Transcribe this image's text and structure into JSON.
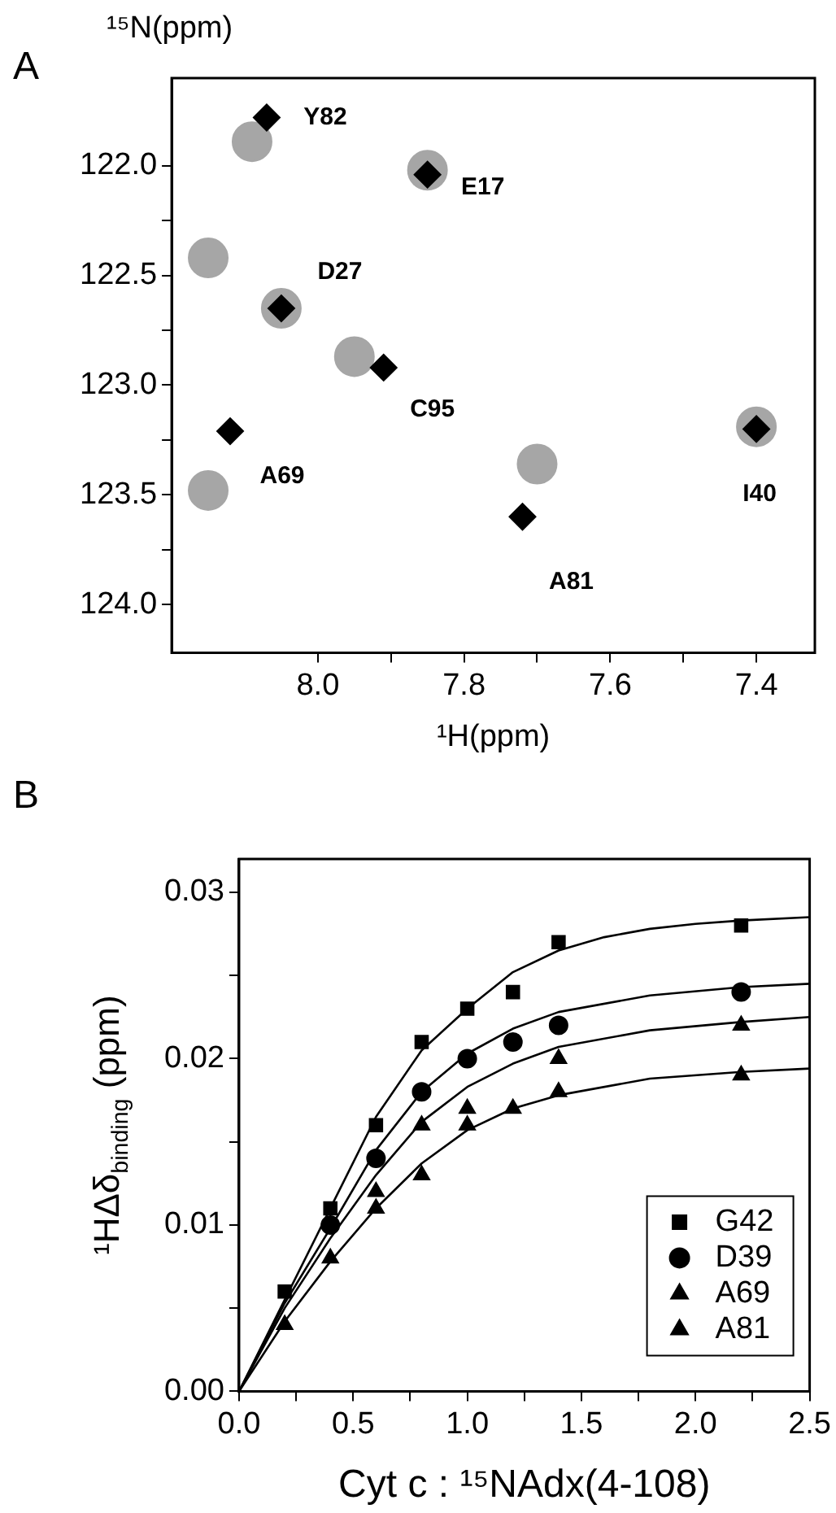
{
  "chart_data": [
    {
      "type": "scatter",
      "title": "A",
      "xlabel": "¹H(ppm)",
      "ylabel": "¹⁵N(ppm)",
      "xlim": [
        8.2,
        7.32
      ],
      "ylim": [
        124.22,
        121.6
      ],
      "xticks": [
        {
          "value": 8.0,
          "label": "8.0"
        },
        {
          "value": 7.9,
          "label": null
        },
        {
          "value": 7.8,
          "label": "7.8"
        },
        {
          "value": 7.7,
          "label": null
        },
        {
          "value": 7.6,
          "label": "7.6"
        },
        {
          "value": 7.5,
          "label": null
        },
        {
          "value": 7.4,
          "label": "7.4"
        }
      ],
      "yticks": [
        {
          "value": 122.0,
          "label": "122.0"
        },
        {
          "value": 122.25,
          "label": null
        },
        {
          "value": 122.5,
          "label": "122.5"
        },
        {
          "value": 122.75,
          "label": null
        },
        {
          "value": 123.0,
          "label": "123.0"
        },
        {
          "value": 123.25,
          "label": null
        },
        {
          "value": 123.5,
          "label": "123.5"
        },
        {
          "value": 123.75,
          "label": null
        },
        {
          "value": 124.0,
          "label": "124.0"
        }
      ],
      "series": [
        {
          "color": "#000000",
          "marker": "diamond",
          "x": [
            8.07,
            7.85,
            8.05,
            7.91,
            8.12,
            7.72,
            7.4
          ],
          "values": [
            121.78,
            122.04,
            122.65,
            122.92,
            123.21,
            123.6,
            123.2
          ]
        },
        {
          "color": "#a6a6a6",
          "marker": "circle",
          "x": [
            8.09,
            7.85,
            8.05,
            7.95,
            8.15,
            7.7,
            7.4,
            8.15
          ],
          "values": [
            121.89,
            122.02,
            122.65,
            122.87,
            123.48,
            123.36,
            123.19,
            122.42
          ]
        }
      ],
      "annotations": [
        {
          "text": "Y82",
          "x": 8.07,
          "y": 121.78
        },
        {
          "text": "E17",
          "x": 7.85,
          "y": 122.04
        },
        {
          "text": "D27",
          "x": 8.05,
          "y": 122.65
        },
        {
          "text": "C95",
          "x": 7.91,
          "y": 122.92
        },
        {
          "text": "A69",
          "x": 8.12,
          "y": 123.21
        },
        {
          "text": "A81",
          "x": 7.72,
          "y": 123.6
        },
        {
          "text": "I40",
          "x": 7.4,
          "y": 123.2
        }
      ]
    },
    {
      "type": "scatter",
      "title": "B",
      "xlabel": "Cyt c : ¹⁵NAdx(4-108)",
      "ylabel": "¹HΔδ$_{binding}$ (ppm)",
      "xlim": [
        0,
        2.5
      ],
      "ylim": [
        0,
        0.032
      ],
      "xticks": [
        {
          "value": 0,
          "label": "0.0"
        },
        {
          "value": 0.25,
          "label": null
        },
        {
          "value": 0.5,
          "label": "0.5"
        },
        {
          "value": 0.75,
          "label": null
        },
        {
          "value": 1.0,
          "label": "1.0"
        },
        {
          "value": 1.25,
          "label": null
        },
        {
          "value": 1.5,
          "label": "1.5"
        },
        {
          "value": 1.75,
          "label": null
        },
        {
          "value": 2.0,
          "label": "2.0"
        },
        {
          "value": 2.25,
          "label": null
        },
        {
          "value": 2.5,
          "label": "2.5"
        }
      ],
      "yticks": [
        {
          "value": 0,
          "label": "0.00"
        },
        {
          "value": 0.005,
          "label": null
        },
        {
          "value": 0.01,
          "label": "0.01"
        },
        {
          "value": 0.015,
          "label": null
        },
        {
          "value": 0.02,
          "label": "0.02"
        },
        {
          "value": 0.025,
          "label": null
        },
        {
          "value": 0.03,
          "label": "0.03"
        }
      ],
      "x": [
        0.2,
        0.4,
        0.6,
        0.8,
        1.0,
        1.2,
        1.4,
        2.2
      ],
      "legend": "bottom right",
      "series": [
        {
          "name": "G42",
          "color": "#000000",
          "marker": "square",
          "values": [
            0.006,
            0.011,
            0.016,
            0.021,
            0.023,
            0.024,
            0.027,
            0.028
          ]
        },
        {
          "name": "D39",
          "color": "#000000",
          "marker": "circle",
          "values": [
            null,
            0.01,
            0.014,
            0.018,
            0.02,
            0.021,
            0.022,
            0.024
          ]
        },
        {
          "name": "A69",
          "color": "#000000",
          "marker": "triangle",
          "values": [
            null,
            null,
            0.012,
            0.016,
            0.017,
            null,
            0.02,
            0.022
          ]
        },
        {
          "name": "A81",
          "color": "#000000",
          "marker": "triangle",
          "values": [
            0.004,
            0.008,
            0.011,
            0.013,
            0.016,
            0.017,
            0.018,
            0.019
          ]
        },
        {
          "type": "line",
          "color": "#000000",
          "marker": "none",
          "x": [
            0,
            0.2,
            0.4,
            0.6,
            0.8,
            1.0,
            1.2,
            1.4,
            1.6,
            1.8,
            2.0,
            2.2,
            2.5
          ],
          "values": [
            0,
            0.0055,
            0.011,
            0.0165,
            0.0205,
            0.023,
            0.0252,
            0.0265,
            0.0273,
            0.0278,
            0.0281,
            0.0283,
            0.0285
          ]
        },
        {
          "type": "line",
          "color": "#000000",
          "marker": "none",
          "x": [
            0,
            0.2,
            0.4,
            0.6,
            0.8,
            1.0,
            1.2,
            1.4,
            1.8,
            2.2,
            2.5
          ],
          "values": [
            0,
            0.0053,
            0.0098,
            0.0145,
            0.018,
            0.0203,
            0.0218,
            0.0228,
            0.0238,
            0.0243,
            0.0245
          ]
        },
        {
          "type": "line",
          "color": "#000000",
          "marker": "none",
          "x": [
            0,
            0.2,
            0.4,
            0.6,
            0.8,
            1.0,
            1.2,
            1.4,
            1.8,
            2.2,
            2.5
          ],
          "values": [
            0,
            0.005,
            0.0092,
            0.013,
            0.0162,
            0.0183,
            0.0197,
            0.0207,
            0.0217,
            0.0222,
            0.0225
          ]
        },
        {
          "type": "line",
          "color": "#000000",
          "marker": "none",
          "x": [
            0,
            0.2,
            0.4,
            0.6,
            0.8,
            1.0,
            1.2,
            1.4,
            1.8,
            2.2,
            2.5
          ],
          "values": [
            0,
            0.0042,
            0.0078,
            0.011,
            0.0137,
            0.0157,
            0.017,
            0.0178,
            0.0188,
            0.0192,
            0.0194
          ]
        }
      ]
    }
  ]
}
